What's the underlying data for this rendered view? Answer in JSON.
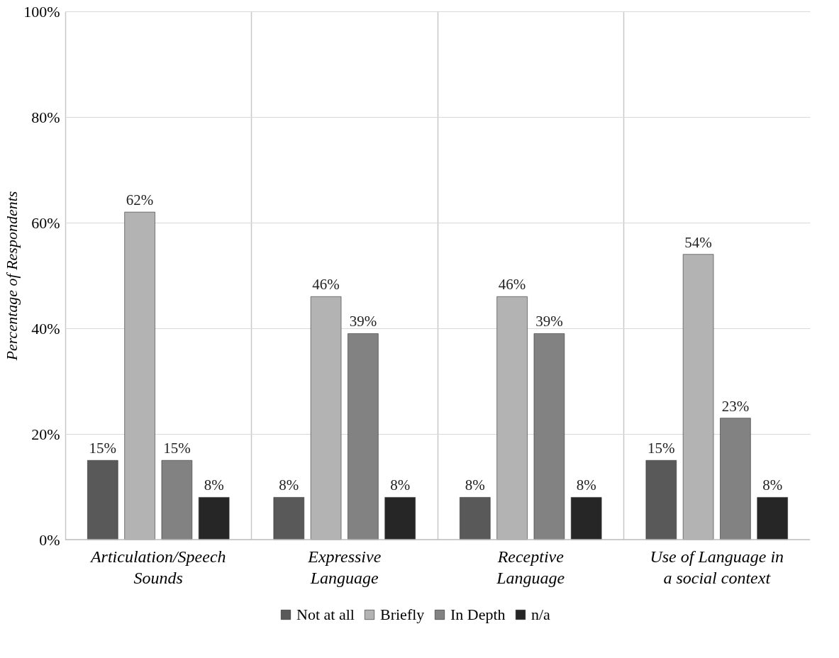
{
  "chart_data": {
    "type": "bar",
    "ylabel": "Percentage of Respondents",
    "categories": [
      "Articulation/Speech Sounds",
      "Expressive Language",
      "Receptive Language",
      "Use of Language in a social context"
    ],
    "series": [
      {
        "name": "Not at all",
        "color": "#595959",
        "values": [
          15,
          8,
          8,
          15
        ],
        "value_labels": [
          "15%",
          "8%",
          "8%",
          "15%"
        ]
      },
      {
        "name": "Briefly",
        "color": "#b3b3b3",
        "values": [
          62,
          46,
          46,
          54
        ],
        "value_labels": [
          "62%",
          "46%",
          "46%",
          "54%"
        ]
      },
      {
        "name": "In Depth",
        "color": "#828282",
        "values": [
          15,
          39,
          39,
          23
        ],
        "value_labels": [
          "15%",
          "39%",
          "39%",
          "23%"
        ]
      },
      {
        "name": "n/a",
        "color": "#262626",
        "values": [
          8,
          8,
          8,
          8
        ],
        "value_labels": [
          "8%",
          "8%",
          "8%",
          "8%"
        ]
      }
    ],
    "ylim": [
      0,
      100
    ],
    "yticks": [
      {
        "value": 0,
        "label": "0%"
      },
      {
        "value": 20,
        "label": "20%"
      },
      {
        "value": 40,
        "label": "40%"
      },
      {
        "value": 60,
        "label": "60%"
      },
      {
        "value": 80,
        "label": "80%"
      },
      {
        "value": 100,
        "label": "100%"
      }
    ],
    "grid": true,
    "legend": "bottom"
  }
}
